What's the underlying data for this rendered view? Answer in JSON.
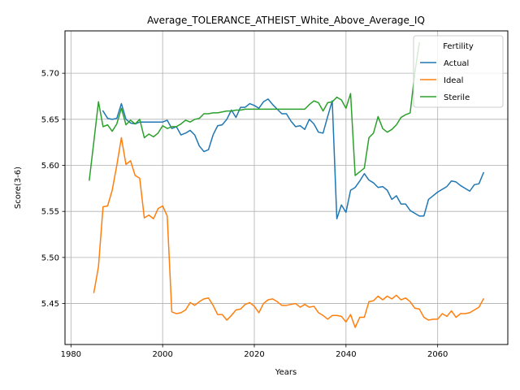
{
  "chart_data": {
    "type": "line",
    "title": "Average_TOLERANCE_ATHEIST_White_Above_Average_IQ",
    "xlabel": "Years",
    "ylabel": "Score(3-6)",
    "xlim": [
      1978.7,
      2075.3
    ],
    "ylim": [
      5.4055,
      5.746
    ],
    "xticks": [
      1980,
      2000,
      2020,
      2040,
      2060
    ],
    "yticks": [
      5.45,
      5.5,
      5.55,
      5.6,
      5.65,
      5.7
    ],
    "ytick_labels": [
      "5.45",
      "5.50",
      "5.55",
      "5.60",
      "5.65",
      "5.70"
    ],
    "grid": true,
    "legend": {
      "title": "Fertility",
      "placement": "upper right"
    },
    "series": [
      {
        "name": "Actual",
        "color": "#1f77b4",
        "x": [
          1987,
          1988,
          1989,
          1990,
          1991,
          1992,
          1993,
          1994,
          1995,
          1996,
          1997,
          1998,
          1999,
          2000,
          2001,
          2002,
          2003,
          2004,
          2005,
          2006,
          2007,
          2008,
          2009,
          2010,
          2011,
          2012,
          2013,
          2014,
          2015,
          2016,
          2017,
          2018,
          2019,
          2020,
          2021,
          2022,
          2023,
          2024,
          2025,
          2026,
          2027,
          2028,
          2029,
          2030,
          2031,
          2032,
          2033,
          2034,
          2035,
          2036,
          2037,
          2038,
          2039,
          2040,
          2041,
          2042,
          2043,
          2044,
          2045,
          2046,
          2047,
          2048,
          2049,
          2050,
          2051,
          2052,
          2053,
          2054,
          2055,
          2056,
          2057,
          2058,
          2059,
          2060,
          2061,
          2062,
          2063,
          2064,
          2065,
          2066,
          2067,
          2068,
          2069,
          2070
        ],
        "y": [
          5.659,
          5.651,
          5.65,
          5.651,
          5.667,
          5.65,
          5.646,
          5.645,
          5.647,
          5.647,
          5.647,
          5.647,
          5.647,
          5.647,
          5.649,
          5.64,
          5.642,
          5.633,
          5.635,
          5.638,
          5.633,
          5.621,
          5.615,
          5.617,
          5.633,
          5.643,
          5.644,
          5.65,
          5.66,
          5.652,
          5.663,
          5.663,
          5.667,
          5.665,
          5.662,
          5.669,
          5.672,
          5.666,
          5.661,
          5.656,
          5.656,
          5.648,
          5.642,
          5.643,
          5.639,
          5.65,
          5.645,
          5.636,
          5.635,
          5.653,
          5.67,
          5.542,
          5.557,
          5.549,
          5.573,
          5.576,
          5.583,
          5.591,
          5.584,
          5.581,
          5.576,
          5.577,
          5.573,
          5.563,
          5.567,
          5.558,
          5.558,
          5.551,
          5.548,
          5.545,
          5.545,
          5.563,
          5.567,
          5.571,
          5.574,
          5.577,
          5.583,
          5.582,
          5.578,
          5.575,
          5.572,
          5.579,
          5.58,
          5.592
        ]
      },
      {
        "name": "Ideal",
        "color": "#ff7f0e",
        "x": [
          1985,
          1986,
          1987,
          1988,
          1989,
          1990,
          1991,
          1992,
          1993,
          1994,
          1995,
          1996,
          1997,
          1998,
          1999,
          2000,
          2001,
          2002,
          2003,
          2004,
          2005,
          2006,
          2007,
          2008,
          2009,
          2010,
          2011,
          2012,
          2013,
          2014,
          2015,
          2016,
          2017,
          2018,
          2019,
          2020,
          2021,
          2022,
          2023,
          2024,
          2025,
          2026,
          2027,
          2028,
          2029,
          2030,
          2031,
          2032,
          2033,
          2034,
          2035,
          2036,
          2037,
          2038,
          2039,
          2040,
          2041,
          2042,
          2043,
          2044,
          2045,
          2046,
          2047,
          2048,
          2049,
          2050,
          2051,
          2052,
          2053,
          2054,
          2055,
          2056,
          2057,
          2058,
          2059,
          2060,
          2061,
          2062,
          2063,
          2064,
          2065,
          2066,
          2067,
          2068,
          2069,
          2070
        ],
        "y": [
          5.462,
          5.49,
          5.555,
          5.556,
          5.573,
          5.6,
          5.63,
          5.601,
          5.605,
          5.589,
          5.586,
          5.543,
          5.546,
          5.542,
          5.553,
          5.556,
          5.545,
          5.441,
          5.439,
          5.44,
          5.443,
          5.451,
          5.448,
          5.452,
          5.455,
          5.456,
          5.448,
          5.438,
          5.438,
          5.432,
          5.437,
          5.443,
          5.444,
          5.449,
          5.451,
          5.447,
          5.44,
          5.45,
          5.454,
          5.455,
          5.452,
          5.448,
          5.448,
          5.449,
          5.45,
          5.446,
          5.449,
          5.446,
          5.447,
          5.44,
          5.437,
          5.433,
          5.437,
          5.437,
          5.436,
          5.43,
          5.438,
          5.424,
          5.435,
          5.435,
          5.452,
          5.453,
          5.458,
          5.454,
          5.458,
          5.455,
          5.459,
          5.454,
          5.456,
          5.452,
          5.445,
          5.444,
          5.435,
          5.432,
          5.433,
          5.433,
          5.439,
          5.436,
          5.442,
          5.435,
          5.439,
          5.439,
          5.44,
          5.443,
          5.446,
          5.455
        ]
      },
      {
        "name": "Sterile",
        "color": "#2ca02c",
        "x": [
          1984,
          1985,
          1986,
          1987,
          1988,
          1989,
          1990,
          1991,
          1992,
          1993,
          1994,
          1995,
          1996,
          1997,
          1998,
          1999,
          2000,
          2001,
          2002,
          2003,
          2004,
          2005,
          2006,
          2007,
          2008,
          2009,
          2010,
          2011,
          2012,
          2013,
          2014,
          2015,
          2016,
          2017,
          2018,
          2019,
          2020,
          2021,
          2022,
          2023,
          2024,
          2025,
          2026,
          2027,
          2028,
          2029,
          2030,
          2031,
          2032,
          2033,
          2034,
          2035,
          2036,
          2037,
          2038,
          2039,
          2040,
          2041,
          2042,
          2043,
          2044,
          2045,
          2046,
          2047,
          2048,
          2049,
          2050,
          2051,
          2052,
          2053,
          2054,
          2055,
          2056
        ],
        "y": [
          5.584,
          5.626,
          5.669,
          5.642,
          5.644,
          5.637,
          5.645,
          5.662,
          5.644,
          5.649,
          5.645,
          5.65,
          5.63,
          5.634,
          5.631,
          5.635,
          5.643,
          5.64,
          5.642,
          5.642,
          5.645,
          5.649,
          5.647,
          5.65,
          5.651,
          5.656,
          5.656,
          5.657,
          5.657,
          5.658,
          5.659,
          5.659,
          5.66,
          5.66,
          5.661,
          5.661,
          5.661,
          5.661,
          5.661,
          5.661,
          5.661,
          5.661,
          5.661,
          5.661,
          5.661,
          5.661,
          5.661,
          5.661,
          5.666,
          5.67,
          5.668,
          5.659,
          5.668,
          5.669,
          5.674,
          5.671,
          5.662,
          5.678,
          5.589,
          5.593,
          5.597,
          5.63,
          5.635,
          5.653,
          5.64,
          5.636,
          5.639,
          5.644,
          5.652,
          5.655,
          5.657,
          5.7,
          5.733
        ]
      }
    ]
  }
}
